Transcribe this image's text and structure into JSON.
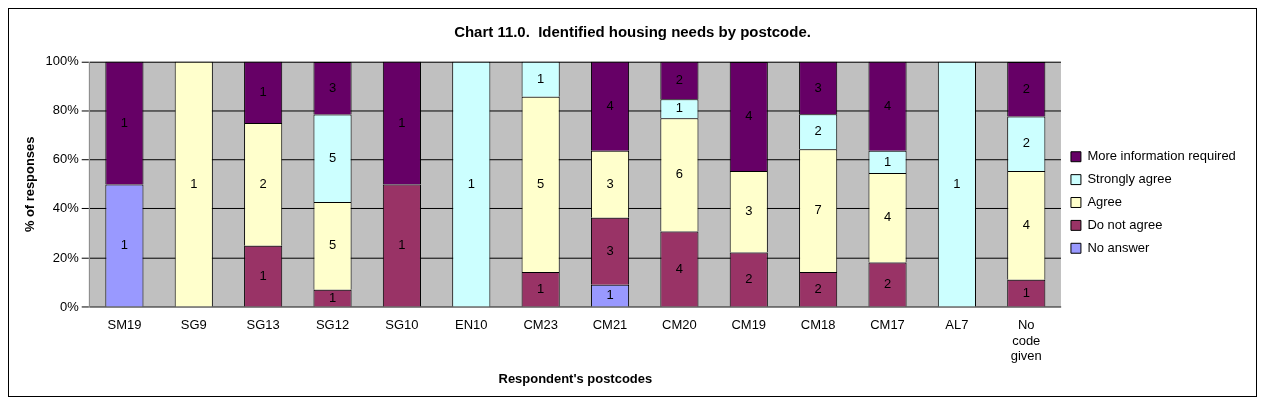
{
  "chart_data": {
    "type": "bar",
    "stacked": true,
    "title": "Chart 11.0.  Identified housing needs by postcode.",
    "xlabel": "Respondent's postcodes",
    "ylabel": "% of responses",
    "categories": [
      "SM19",
      "SG9",
      "SG13",
      "SG12",
      "SG10",
      "EN10",
      "CM23",
      "CM21",
      "CM20",
      "CM19",
      "CM18",
      "CM17",
      "AL7",
      "No code given"
    ],
    "series": [
      {
        "name": "No answer",
        "color": "#9999ff",
        "values": [
          50,
          null,
          null,
          null,
          null,
          null,
          null,
          9.1,
          null,
          null,
          null,
          null,
          null,
          null
        ]
      },
      {
        "name": "Do not agree",
        "color": "#993366",
        "values": [
          null,
          null,
          25,
          7.1,
          50,
          null,
          14.3,
          27.3,
          30.8,
          22.2,
          14.3,
          18.2,
          null,
          11.1
        ]
      },
      {
        "name": "Agree",
        "color": "#ffffcc",
        "values": [
          null,
          100,
          50,
          35.7,
          null,
          null,
          71.4,
          27.3,
          46.2,
          33.3,
          50,
          36.4,
          null,
          44.4
        ]
      },
      {
        "name": "Strongly agree",
        "color": "#ccffff",
        "values": [
          null,
          null,
          null,
          35.7,
          null,
          100,
          14.3,
          null,
          7.7,
          null,
          14.3,
          9.1,
          100,
          22.2
        ]
      },
      {
        "name": "More information required",
        "color": "#660066",
        "values": [
          50,
          null,
          25,
          21.4,
          50,
          null,
          null,
          36.3,
          15.3,
          44.4,
          21.4,
          36.3,
          null,
          22.2
        ]
      }
    ],
    "annotations": [
      "1",
      "1",
      "1",
      "1",
      "2",
      "1",
      "1",
      "5",
      "5",
      "3",
      "1",
      "1",
      "1",
      "1",
      "5",
      "1",
      "1",
      "3",
      "3",
      "4",
      "4",
      "6",
      "1",
      "2",
      "2",
      "3",
      "4",
      "2",
      "7",
      "2",
      "3",
      "2",
      "4",
      "1",
      "4",
      "1",
      "1",
      "4",
      "2",
      "2"
    ],
    "ylim": [
      0,
      100
    ],
    "yticks": [
      {
        "value": 0,
        "label": "0%"
      },
      {
        "value": 20,
        "label": "20%"
      },
      {
        "value": 40,
        "label": "40%"
      },
      {
        "value": 60,
        "label": "60%"
      },
      {
        "value": 80,
        "label": "80%"
      },
      {
        "value": 100,
        "label": "100%"
      }
    ],
    "grid": "y",
    "legend": "right"
  }
}
